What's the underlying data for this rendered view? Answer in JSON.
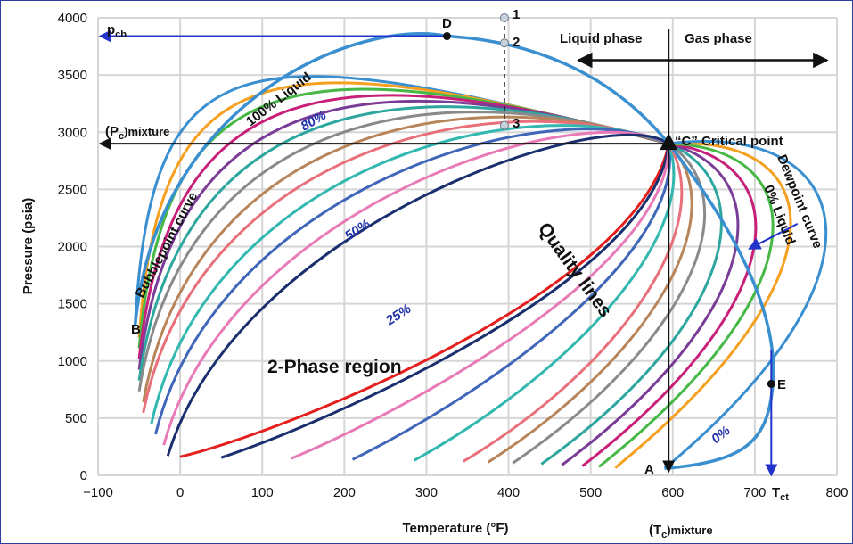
{
  "chart_data": {
    "type": "line",
    "title": "",
    "xlabel": "Temperature (°F)",
    "ylabel": "Pressure (psia)",
    "xlim": [
      -100,
      800
    ],
    "ylim": [
      0,
      4000
    ],
    "x_ticks": [
      "−100",
      "0",
      "100",
      "200",
      "300",
      "400",
      "500",
      "600",
      "700",
      "800"
    ],
    "y_ticks": [
      "0",
      "500",
      "1000",
      "1500",
      "2000",
      "2500",
      "3000",
      "3500",
      "4000"
    ],
    "grid": true,
    "critical_point": {
      "x": 595,
      "y": 2900,
      "label": "“C” Critical point"
    },
    "quality_line_colors": [
      "#3a8fd0",
      "#f5a020",
      "#45b845",
      "#c8207a",
      "#7a3d97",
      "#2ea6a0",
      "#8a8a8a",
      "#b8845a",
      "#e8707a",
      "#32b8b0",
      "#3f66b8",
      "#e87ab8",
      "#1a2f6e",
      "#e51e1e",
      "#1a2f6e",
      "#e87ab8",
      "#3f66b8",
      "#32b8b0",
      "#e8707a",
      "#b8845a",
      "#8a8a8a",
      "#2ea6a0",
      "#7a3d97",
      "#c8207a",
      "#45b845",
      "#f5a020",
      "#3a8fd0"
    ],
    "quality_lines_start_temperatures": [
      -55,
      -50,
      -50,
      -50,
      -50,
      -50,
      -50,
      -45,
      -45,
      -35,
      -30,
      -20,
      -15,
      0,
      50,
      135,
      210,
      285,
      345,
      375,
      405,
      440,
      465,
      490,
      510,
      530,
      590
    ],
    "labels": {
      "pcb": "p",
      "pcb_sub": "cb",
      "pc_mixture": "(P",
      "pc_mixture_sub": "c",
      "pc_mixture_tail": ")mixture",
      "tc_mixture": "(T",
      "tc_mixture_sub": "c",
      "tc_mixture_tail": ")mixture",
      "tct": "T",
      "tct_sub": "ct",
      "liquid_phase": "Liquid phase",
      "gas_phase": "Gas phase",
      "critical_point": "“C” Critical point",
      "bubblepoint_curve": "Bubblepoint curve",
      "dewpoint_curve": "Dewpoint curve",
      "dewpoint_liquid": "0% Liquid",
      "liquid100": "100% Liquid",
      "quality_lines": "Quality lines",
      "two_phase": "2-Phase region",
      "pct80": "80%",
      "pct50": "50%",
      "pct25": "25%",
      "pct0": "0%",
      "point_A": "A",
      "point_B": "B",
      "point_D": "D",
      "point_E": "E",
      "point_1": "1",
      "point_2": "2",
      "point_3": "3"
    },
    "points": {
      "A": {
        "x": 595,
        "y": 0
      },
      "B": {
        "x": -55,
        "y": 1300
      },
      "D": {
        "x": 325,
        "y": 3840
      },
      "E": {
        "x": 720,
        "y": 800
      },
      "p1": {
        "x": 395,
        "y": 4000
      },
      "p2": {
        "x": 395,
        "y": 3780
      },
      "p3": {
        "x": 395,
        "y": 3060
      }
    }
  }
}
